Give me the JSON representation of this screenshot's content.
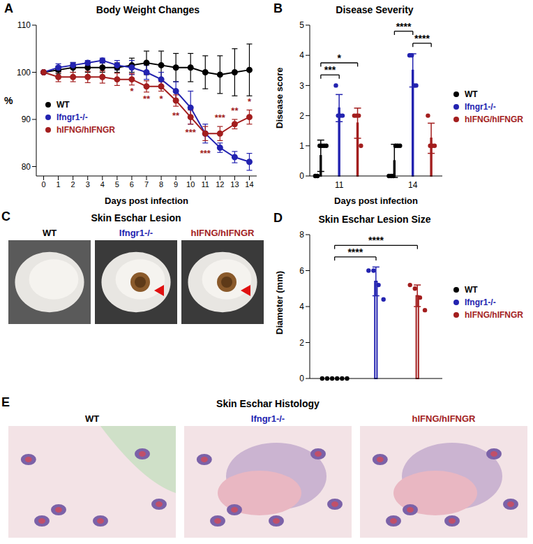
{
  "chart_data": [
    {
      "panel": "A",
      "type": "line",
      "title": "Body Weight Changes",
      "x_label": "Days post infection",
      "y_label": "%",
      "x": [
        0,
        1,
        2,
        3,
        4,
        5,
        6,
        7,
        8,
        9,
        10,
        11,
        12,
        13,
        14
      ],
      "xlim": [
        -0.5,
        14.5
      ],
      "xticks": [
        0,
        1,
        2,
        3,
        4,
        5,
        6,
        7,
        8,
        9,
        10,
        11,
        12,
        13,
        14
      ],
      "ylim": [
        78,
        110
      ],
      "yticks": [
        80,
        90,
        100,
        110
      ],
      "grid": false,
      "legend": "lower left",
      "series": [
        {
          "name": "WT",
          "color": "#000000",
          "marker": "circle",
          "values": [
            100,
            100.5,
            101,
            101,
            101,
            101,
            101.5,
            102,
            101.5,
            101,
            101,
            100,
            99.5,
            100,
            100.5
          ],
          "errors": [
            0,
            0.8,
            1,
            1,
            1,
            1,
            1.5,
            2.5,
            3,
            3,
            3,
            3.5,
            4,
            5,
            5.5
          ]
        },
        {
          "name": "Ifngr1-/-",
          "color": "#2323b0",
          "marker": "circle",
          "values": [
            100,
            101,
            101.5,
            102,
            102.5,
            101.5,
            101,
            100,
            98.5,
            96,
            92.5,
            87,
            84,
            82,
            81
          ],
          "errors": [
            0,
            0.8,
            0.6,
            0.5,
            0.5,
            1,
            1.5,
            1.5,
            1.5,
            2,
            3.5,
            2,
            1,
            1.2,
            1.8
          ]
        },
        {
          "name": "hIFNG/hIFNGR",
          "color": "#a31e1e",
          "marker": "circle",
          "values": [
            100,
            99,
            99,
            99,
            99,
            98.5,
            98.5,
            97,
            97,
            94,
            90.5,
            87,
            87,
            89,
            90.5
          ],
          "errors": [
            0,
            1,
            1,
            1.2,
            1.3,
            1.3,
            1.2,
            1.2,
            1,
            1.2,
            1.5,
            1.5,
            1.5,
            1,
            1.5
          ]
        }
      ],
      "annotations": [
        {
          "x": 6,
          "y": 96,
          "text": "*",
          "color": "#a31e1e"
        },
        {
          "x": 7,
          "y": 94.4,
          "text": "**",
          "color": "#a31e1e"
        },
        {
          "x": 8,
          "y": 94.3,
          "text": "*",
          "color": "#a31e1e"
        },
        {
          "x": 9,
          "y": 90.8,
          "text": "**",
          "color": "#a31e1e"
        },
        {
          "x": 10,
          "y": 87.3,
          "text": "***",
          "color": "#a31e1e"
        },
        {
          "x": 11,
          "y": 82.8,
          "text": "***",
          "color": "#a31e1e"
        },
        {
          "x": 12,
          "y": 90.3,
          "text": "***",
          "color": "#a31e1e"
        },
        {
          "x": 13,
          "y": 91.8,
          "text": "**",
          "color": "#a31e1e"
        },
        {
          "x": 14,
          "y": 93.8,
          "text": "*",
          "color": "#a31e1e"
        }
      ]
    },
    {
      "panel": "B",
      "type": "bar",
      "title": "Disease Severity",
      "x_label": "Days post infection",
      "y_label": "Disease score",
      "categories": [
        "11",
        "14"
      ],
      "ylim": [
        0,
        5
      ],
      "yticks": [
        0,
        1,
        2,
        3,
        4,
        5
      ],
      "grid": false,
      "legend": "right",
      "series": [
        {
          "name": "WT",
          "color": "#000000",
          "marker": "circle",
          "values": [
            0.67,
            0.5
          ],
          "errors": [
            0.52,
            0.55
          ],
          "points": [
            [
              0,
              0,
              1,
              1,
              1,
              1
            ],
            [
              0,
              0,
              0,
              1,
              1,
              1
            ]
          ]
        },
        {
          "name": "Ifngr1-/-",
          "color": "#2323b0",
          "marker": "circle",
          "values": [
            2.25,
            3.5
          ],
          "errors": [
            0.45,
            0.55
          ],
          "points": [
            [
              3,
              2,
              2,
              2
            ],
            [
              4,
              4,
              3,
              3
            ]
          ]
        },
        {
          "name": "hIFNG/hIFNGR",
          "color": "#a31e1e",
          "marker": "circle",
          "values": [
            1.75,
            1.25
          ],
          "errors": [
            0.5,
            0.5
          ],
          "points": [
            [
              2,
              2,
              2,
              1
            ],
            [
              2,
              1,
              1,
              1
            ]
          ]
        }
      ],
      "comparisons": [
        {
          "category": "11",
          "groups": [
            "WT",
            "Ifngr1-/-"
          ],
          "label": "***"
        },
        {
          "category": "11",
          "groups": [
            "WT",
            "hIFNG/hIFNGR"
          ],
          "label": "*"
        },
        {
          "category": "14",
          "groups": [
            "Ifngr1-/-",
            "hIFNG/hIFNGR"
          ],
          "label": "****"
        },
        {
          "category": "14",
          "groups": [
            "WT",
            "Ifngr1-/-"
          ],
          "label": "****"
        }
      ]
    },
    {
      "panel": "D",
      "type": "bar",
      "title": "Skin Eschar Lesion Size",
      "y_label": "Diameter (mm)",
      "ylim": [
        0,
        8
      ],
      "yticks": [
        0,
        2,
        4,
        6,
        8
      ],
      "grid": false,
      "legend": "right",
      "tick_labels": "y",
      "series": [
        {
          "name": "WT",
          "color": "#000000",
          "marker": "circle",
          "values": [
            0
          ],
          "errors": [
            0
          ],
          "points": [
            [
              0,
              0,
              0,
              0,
              0,
              0
            ]
          ]
        },
        {
          "name": "Ifngr1-/-",
          "color": "#2323b0",
          "marker": "circle",
          "values": [
            5.4
          ],
          "errors": [
            0.8
          ],
          "points": [
            [
              6,
              6,
              5.2,
              4.4
            ]
          ]
        },
        {
          "name": "hIFNG/hIFNGR",
          "color": "#a31e1e",
          "marker": "circle",
          "values": [
            4.6
          ],
          "errors": [
            0.6
          ],
          "points": [
            [
              5.2,
              5,
              4.5,
              3.8
            ]
          ]
        }
      ],
      "comparisons": [
        {
          "groups": [
            "WT",
            "Ifngr1-/-"
          ],
          "label": "****"
        },
        {
          "groups": [
            "WT",
            "hIFNG/hIFNGR"
          ],
          "label": "****"
        }
      ]
    }
  ],
  "images": [
    {
      "panel": "C",
      "title": "Skin Eschar Lesion",
      "labels": [
        {
          "text": "WT",
          "color": "#000000"
        },
        {
          "text": "Ifngr1-/-",
          "color": "#2323b0"
        },
        {
          "text": "hIFNG/hIFNGR",
          "color": "#a31e1e"
        }
      ]
    },
    {
      "panel": "E",
      "title": "Skin Eschar Histology",
      "labels": [
        {
          "text": "WT",
          "color": "#000000"
        },
        {
          "text": "Ifngr1-/-",
          "color": "#2323b0"
        },
        {
          "text": "hIFNG/hIFNGR",
          "color": "#a31e1e"
        }
      ]
    }
  ]
}
